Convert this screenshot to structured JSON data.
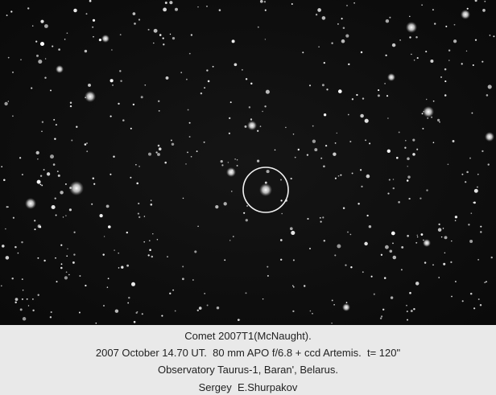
{
  "caption": {
    "lines": [
      "Comet 2007T1(McNaught).",
      "2007 October 14.70 UT.  80 mm APO f/6.8 + ccd Artemis.  t= 120\"",
      "Observatory Taurus-1, Baran', Belarus.",
      "Sergey  E.Shurpakov"
    ]
  }
}
